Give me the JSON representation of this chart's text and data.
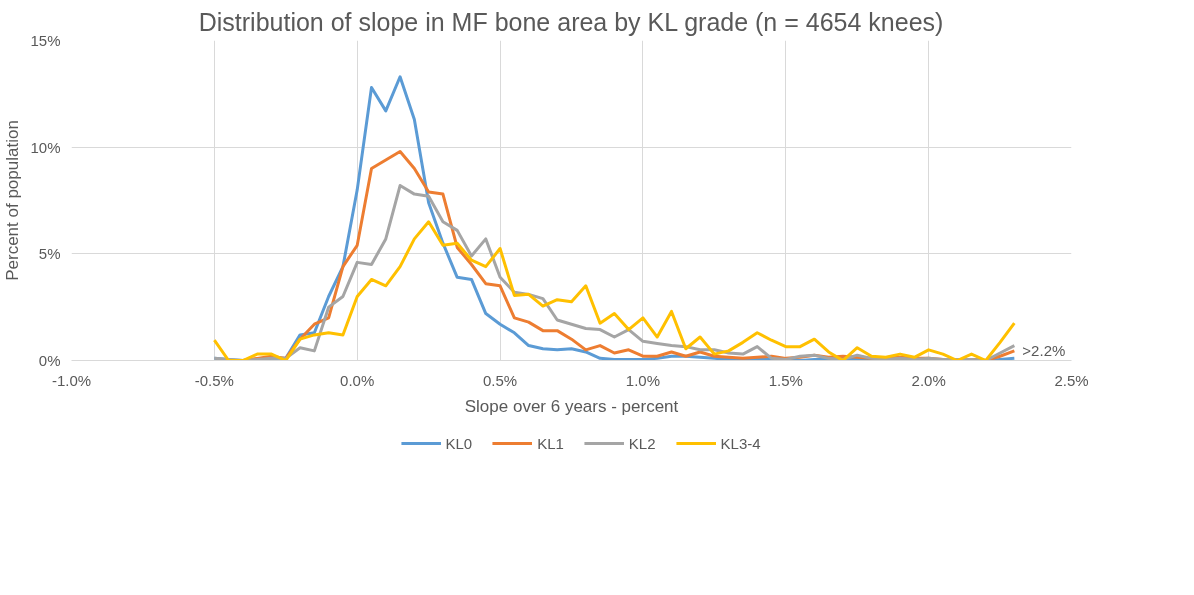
{
  "chart_data": {
    "type": "line",
    "title": "Distribution of slope in MF bone area by KL grade (n = 4654 knees)",
    "xlabel": "Slope over 6 years - percent",
    "ylabel": "Percent of population",
    "x": [
      -0.5,
      -0.45,
      -0.4,
      -0.35,
      -0.3,
      -0.25,
      -0.2,
      -0.15,
      -0.1,
      -0.05,
      0,
      0.05,
      0.1,
      0.15,
      0.2,
      0.25,
      0.3,
      0.35,
      0.4,
      0.45,
      0.5,
      0.55,
      0.6,
      0.65,
      0.7,
      0.75,
      0.8,
      0.85,
      0.9,
      0.95,
      1.0,
      1.05,
      1.1,
      1.15,
      1.2,
      1.25,
      1.3,
      1.35,
      1.4,
      1.45,
      1.5,
      1.55,
      1.6,
      1.65,
      1.7,
      1.75,
      1.8,
      1.85,
      1.9,
      1.95,
      2.0,
      2.05,
      2.1,
      2.15,
      2.2,
      2.25,
      2.3
    ],
    "series": [
      {
        "name": "KL0",
        "color": "#5b9bd5",
        "values": [
          0.1,
          0.05,
          0,
          0.05,
          0.1,
          0.1,
          1.2,
          1.3,
          3.0,
          4.4,
          8.0,
          12.8,
          11.7,
          13.3,
          11.3,
          7.4,
          5.5,
          3.9,
          3.8,
          2.2,
          1.7,
          1.3,
          0.7,
          0.55,
          0.5,
          0.55,
          0.4,
          0.1,
          0.05,
          0.05,
          0.05,
          0.1,
          0.2,
          0.2,
          0.15,
          0.1,
          0.05,
          0.05,
          0.05,
          0.05,
          0.05,
          0,
          0.05,
          0.05,
          0.05,
          0.05,
          0.05,
          0,
          0.05,
          0.05,
          0.05,
          0,
          0,
          0.05,
          0,
          0.05,
          0.1
        ]
      },
      {
        "name": "KL1",
        "color": "#ed7d31",
        "x": [
          -0.4,
          -0.35,
          -0.3,
          -0.25,
          -0.2,
          -0.15,
          -0.1,
          -0.05,
          0,
          0.05,
          0.1,
          0.15,
          0.2,
          0.25,
          0.3,
          0.35,
          0.4,
          0.45,
          0.5,
          0.55,
          0.6,
          0.65,
          0.7,
          0.75,
          0.8,
          0.85,
          0.9,
          0.95,
          1.0,
          1.05,
          1.1,
          1.15,
          1.2,
          1.25,
          1.3,
          1.35,
          1.4,
          1.45,
          1.5,
          1.55,
          1.6,
          1.65,
          1.7,
          1.75,
          1.8,
          1.85,
          1.9,
          1.95,
          2.0,
          2.05,
          2.1,
          2.15,
          2.2,
          2.25,
          2.3
        ],
        "values": [
          0,
          0.1,
          0.2,
          0.1,
          1.0,
          1.7,
          2.0,
          4.4,
          5.4,
          9.0,
          9.4,
          9.8,
          9.0,
          7.9,
          7.8,
          5.3,
          4.5,
          3.6,
          3.5,
          2.0,
          1.8,
          1.4,
          1.4,
          1.0,
          0.5,
          0.7,
          0.35,
          0.5,
          0.2,
          0.2,
          0.4,
          0.2,
          0.4,
          0.2,
          0.15,
          0.1,
          0.15,
          0.2,
          0.1,
          0.15,
          0.25,
          0.15,
          0.2,
          0.15,
          0.1,
          0.1,
          0.15,
          0.1,
          0.1,
          0.05,
          0.05,
          0.05,
          0,
          0.2,
          0.45
        ]
      },
      {
        "name": "KL2",
        "color": "#a5a5a5",
        "values": [
          0.1,
          0.05,
          0,
          0.05,
          0.1,
          0.1,
          0.6,
          0.45,
          2.5,
          3.0,
          4.6,
          4.5,
          5.7,
          8.2,
          7.8,
          7.7,
          6.5,
          6.1,
          4.9,
          5.7,
          3.9,
          3.2,
          3.1,
          2.9,
          1.9,
          1.7,
          1.5,
          1.45,
          1.1,
          1.45,
          0.9,
          0.8,
          0.7,
          0.65,
          0.5,
          0.5,
          0.35,
          0.3,
          0.65,
          0.1,
          0.05,
          0.2,
          0.25,
          0.1,
          0.05,
          0.25,
          0.1,
          0.05,
          0.1,
          0.05,
          0.1,
          0.05,
          0.05,
          0.05,
          0,
          0.35,
          0.7
        ]
      },
      {
        "name": "KL3-4",
        "color": "#ffc000",
        "values": [
          0.95,
          0,
          0,
          0.3,
          0.3,
          0,
          1.0,
          1.2,
          1.3,
          1.2,
          3.0,
          3.8,
          3.5,
          4.4,
          5.7,
          6.5,
          5.4,
          5.5,
          4.7,
          4.4,
          5.25,
          3.05,
          3.1,
          2.55,
          2.85,
          2.75,
          3.5,
          1.75,
          2.2,
          1.45,
          2.0,
          1.1,
          2.3,
          0.55,
          1.1,
          0.3,
          0.45,
          0.85,
          1.3,
          0.95,
          0.65,
          0.65,
          1.0,
          0.4,
          0,
          0.6,
          0.2,
          0.15,
          0.3,
          0.15,
          0.5,
          0.3,
          0,
          0.3,
          0,
          0.85,
          1.75
        ]
      }
    ],
    "xlim": [
      -1.0,
      2.5
    ],
    "xticks": [
      {
        "value": -1.0,
        "label": "-1.0%"
      },
      {
        "value": -0.5,
        "label": "-0.5%"
      },
      {
        "value": 0.0,
        "label": "0.0%"
      },
      {
        "value": 0.5,
        "label": "0.5%"
      },
      {
        "value": 1.0,
        "label": "1.0%"
      },
      {
        "value": 1.5,
        "label": "1.5%"
      },
      {
        "value": 2.0,
        "label": "2.0%"
      },
      {
        "value": 2.5,
        "label": "2.5%"
      }
    ],
    "ylim": [
      0,
      15
    ],
    "yticks": [
      {
        "value": 0,
        "label": "0%"
      },
      {
        "value": 5,
        "label": "5%"
      },
      {
        "value": 10,
        "label": "10%"
      },
      {
        "value": 15,
        "label": "15%"
      }
    ],
    "annotations": [
      {
        "text": ">2.2%",
        "x": 2.3,
        "y": 0
      }
    ],
    "grid": true,
    "legend": "bottom",
    "marker": "none",
    "line_style": "solid"
  }
}
